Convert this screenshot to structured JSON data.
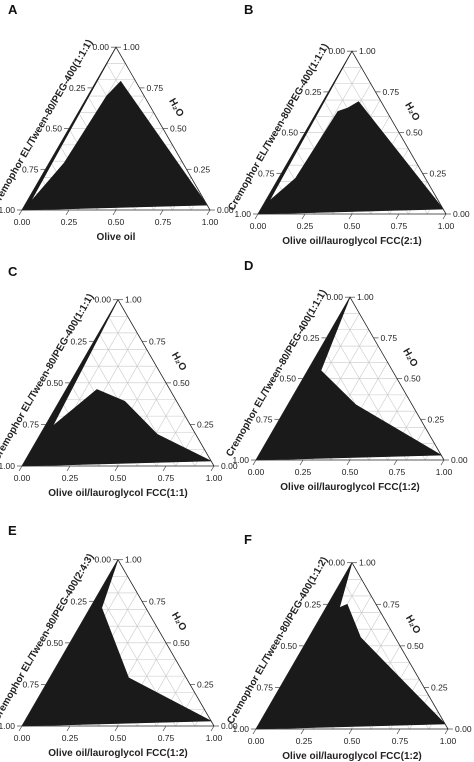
{
  "chart_data": [
    {
      "type": "ternary-area",
      "panel": "A",
      "left_axis_label": "Cremophor EL/Tween-80/PEG-400(1:1:1)",
      "bottom_axis_label": "Olive oil",
      "right_axis_label": "H₂O",
      "tick_labels": [
        "0.00",
        "0.25",
        "0.50",
        "0.75",
        "1.00"
      ],
      "region": {
        "fill": "#1a1a1a",
        "vertices": [
          [
            0.0,
            0.0,
            1.0
          ],
          [
            0.0,
            0.0,
            1.0
          ],
          [
            0.02,
            0.93,
            0.05
          ],
          [
            0.08,
            0.63,
            0.29
          ],
          [
            0.1,
            0.2,
            0.7
          ],
          [
            0.13,
            0.08,
            0.79
          ],
          [
            0.97,
            0.0,
            0.03
          ],
          [
            0.0,
            1.0,
            0.0
          ]
        ]
      }
    },
    {
      "type": "ternary-area",
      "panel": "B",
      "left_axis_label": "Cremophor EL/Tween-80/PEG-400(1:1:1)",
      "bottom_axis_label": "Olive oil/lauroglycol FCC(2:1)",
      "right_axis_label": "H₂O",
      "tick_labels": [
        "0.00",
        "0.25",
        "0.50",
        "0.75",
        "1.00"
      ],
      "region": {
        "fill": "#1a1a1a",
        "vertices": [
          [
            0.0,
            0.0,
            1.0
          ],
          [
            0.02,
            0.9,
            0.08
          ],
          [
            0.09,
            0.69,
            0.22
          ],
          [
            0.11,
            0.26,
            0.63
          ],
          [
            0.15,
            0.2,
            0.65
          ],
          [
            0.19,
            0.12,
            0.69
          ],
          [
            0.97,
            0.0,
            0.03
          ],
          [
            0.0,
            1.0,
            0.0
          ]
        ]
      }
    },
    {
      "type": "ternary-area",
      "panel": "C",
      "left_axis_label": "Cremophor EL/Tween-80/PEG-400(1:1:1)",
      "bottom_axis_label": "Olive oil/lauroglycol FCC(1:1)",
      "right_axis_label": "H₂O",
      "tick_labels": [
        "0.00",
        "0.25",
        "0.50",
        "0.75",
        "1.00"
      ],
      "region": {
        "fill": "#1a1a1a",
        "vertices": [
          [
            0.0,
            0.0,
            1.0
          ],
          [
            0.04,
            0.72,
            0.24
          ],
          [
            0.16,
            0.38,
            0.46
          ],
          [
            0.34,
            0.27,
            0.39
          ],
          [
            0.61,
            0.2,
            0.19
          ],
          [
            0.97,
            0.0,
            0.03
          ],
          [
            0.0,
            1.0,
            0.0
          ]
        ]
      }
    },
    {
      "type": "ternary-area",
      "panel": "D",
      "left_axis_label": "Cremophor EL/Tween-80/PEG-400(1:1:1)",
      "bottom_axis_label": "Olive oil/lauroglycol FCC(1:2)",
      "right_axis_label": "H₂O",
      "tick_labels": [
        "0.00",
        "0.25",
        "0.50",
        "0.75",
        "1.00"
      ],
      "region": {
        "fill": "#1a1a1a",
        "vertices": [
          [
            0.0,
            0.0,
            1.0
          ],
          [
            0.07,
            0.38,
            0.55
          ],
          [
            0.36,
            0.3,
            0.34
          ],
          [
            0.97,
            0.0,
            0.03
          ],
          [
            0.0,
            1.0,
            0.0
          ]
        ]
      }
    },
    {
      "type": "ternary-area",
      "panel": "E",
      "left_axis_label": "Cremophor EL/Tween-80/PEG-400(2:4:3)",
      "bottom_axis_label": "Olive oil/lauroglycol FCC(1:2)",
      "right_axis_label": "H₂O",
      "tick_labels": [
        "0.00",
        "0.25",
        "0.50",
        "0.75",
        "1.00"
      ],
      "region": {
        "fill": "#1a1a1a",
        "vertices": [
          [
            0.0,
            0.0,
            1.0
          ],
          [
            0.06,
            0.23,
            0.71
          ],
          [
            0.41,
            0.3,
            0.29
          ],
          [
            0.97,
            0.0,
            0.03
          ],
          [
            0.0,
            1.0,
            0.0
          ]
        ]
      }
    },
    {
      "type": "ternary-area",
      "panel": "F",
      "left_axis_label": "Cremophor EL/Tween-80/PEG-400(1:1:2)",
      "bottom_axis_label": "Olive oil/lauroglycol FCC(1:2)",
      "right_axis_label": "H₂O",
      "tick_labels": [
        "0.00",
        "0.25",
        "0.50",
        "0.75",
        "1.00"
      ],
      "region": {
        "fill": "#1a1a1a",
        "vertices": [
          [
            0.0,
            0.0,
            1.0
          ],
          [
            0.07,
            0.2,
            0.73
          ],
          [
            0.1,
            0.15,
            0.75
          ],
          [
            0.27,
            0.18,
            0.55
          ],
          [
            0.97,
            0.0,
            0.03
          ],
          [
            0.0,
            1.0,
            0.0
          ]
        ]
      }
    }
  ]
}
